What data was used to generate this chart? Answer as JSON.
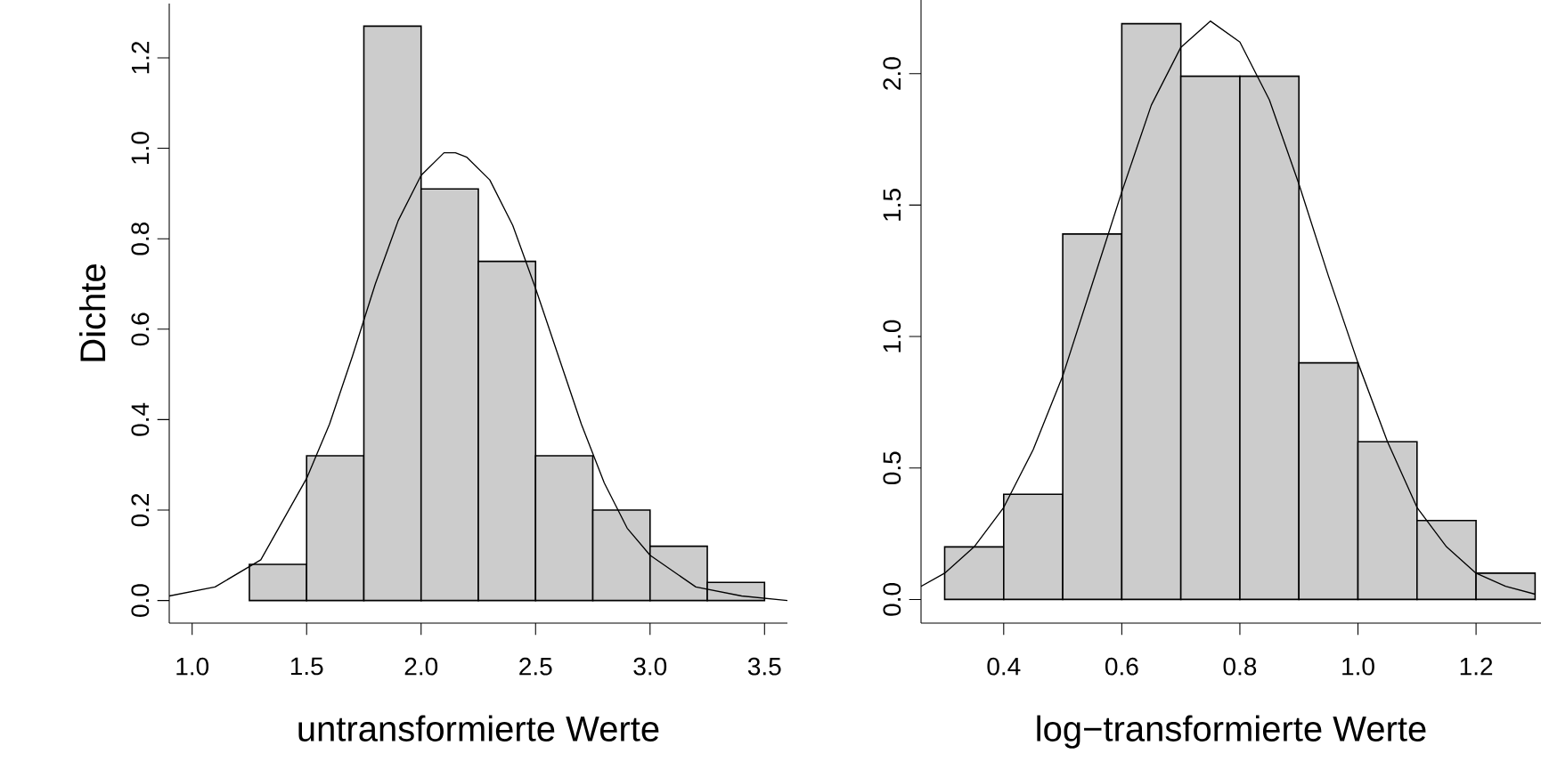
{
  "chart_data": [
    {
      "type": "histogram",
      "xlabel": "untransformierte Werte",
      "ylabel": "Dichte",
      "color": "#cccccc",
      "bins": [
        1.25,
        1.5,
        1.75,
        2.0,
        2.25,
        2.5,
        2.75,
        3.0,
        3.25,
        3.5
      ],
      "values": [
        0.08,
        0.32,
        1.27,
        0.91,
        0.75,
        0.32,
        0.2,
        0.12,
        0.04
      ],
      "series": [
        {
          "type": "line",
          "color": "#000000",
          "x": [
            0.9,
            1.1,
            1.3,
            1.5,
            1.6,
            1.7,
            1.8,
            1.9,
            2.0,
            2.1,
            2.15,
            2.2,
            2.3,
            2.4,
            2.5,
            2.6,
            2.7,
            2.8,
            2.9,
            3.0,
            3.2,
            3.4,
            3.6
          ],
          "values": [
            0.01,
            0.03,
            0.09,
            0.27,
            0.39,
            0.54,
            0.7,
            0.84,
            0.94,
            0.99,
            0.99,
            0.98,
            0.93,
            0.83,
            0.69,
            0.54,
            0.39,
            0.26,
            0.16,
            0.1,
            0.03,
            0.01,
            0.0
          ]
        }
      ],
      "xlim": [
        0.9,
        3.6
      ],
      "ylim": [
        -0.05,
        1.32
      ],
      "xticks": [
        {
          "value": 1.0,
          "label": "1.0"
        },
        1.5,
        {
          "value": 2.0,
          "label": "2.0"
        },
        2.5,
        {
          "value": 3.0,
          "label": "3.0"
        },
        3.5
      ],
      "yticks": [
        {
          "value": 0,
          "label": "0.0"
        },
        0.2,
        0.4,
        0.6,
        0.8,
        {
          "value": 1.0,
          "label": "1.0"
        },
        1.2
      ]
    },
    {
      "type": "histogram",
      "xlabel": "log−transformierte Werte",
      "color": "#cccccc",
      "bins": [
        0.3,
        0.4,
        0.5,
        0.6,
        0.7,
        0.8,
        0.9,
        1.0,
        1.1,
        1.2,
        1.3
      ],
      "values": [
        0.2,
        0.4,
        1.39,
        2.19,
        1.99,
        1.99,
        0.9,
        0.6,
        0.3,
        0.1
      ],
      "series": [
        {
          "type": "line",
          "color": "#000000",
          "x": [
            0.26,
            0.3,
            0.35,
            0.4,
            0.45,
            0.5,
            0.55,
            0.6,
            0.65,
            0.7,
            0.75,
            0.8,
            0.85,
            0.9,
            0.95,
            1.0,
            1.05,
            1.1,
            1.15,
            1.2,
            1.25,
            1.3
          ],
          "values": [
            0.05,
            0.1,
            0.2,
            0.35,
            0.57,
            0.85,
            1.2,
            1.55,
            1.88,
            2.1,
            2.2,
            2.12,
            1.9,
            1.58,
            1.23,
            0.9,
            0.6,
            0.35,
            0.2,
            0.1,
            0.05,
            0.02
          ]
        }
      ],
      "xlim": [
        0.26,
        1.31
      ],
      "ylim": [
        -0.09,
        2.28
      ],
      "xticks": [
        0.4,
        0.6,
        0.8,
        {
          "value": 1.0,
          "label": "1.0"
        },
        1.2
      ],
      "yticks": [
        {
          "value": 0,
          "label": "0.0"
        },
        0.5,
        {
          "value": 1.0,
          "label": "1.0"
        },
        1.5,
        {
          "value": 2.0,
          "label": "2.0"
        }
      ]
    }
  ]
}
